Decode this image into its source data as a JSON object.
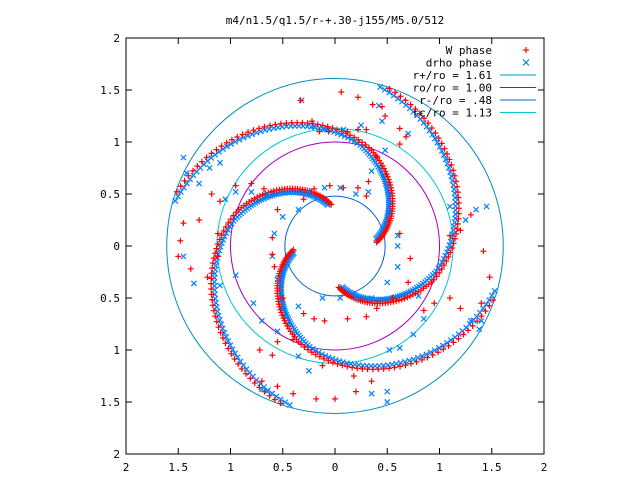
{
  "chart_data": {
    "type": "scatter",
    "title": "m4/n1.5/q1.5/r-+.30-j155/M5.0/512",
    "xlabel": "",
    "ylabel": "",
    "xlim": [
      -2,
      2
    ],
    "ylim": [
      -2,
      2
    ],
    "x_ticks": [
      {
        "value": -2,
        "label": "2"
      },
      {
        "value": -1.5,
        "label": "1.5"
      },
      {
        "value": -1,
        "label": "1"
      },
      {
        "value": -0.5,
        "label": "0.5"
      },
      {
        "value": 0,
        "label": "0"
      },
      {
        "value": 0.5,
        "label": "0.5"
      },
      {
        "value": 1,
        "label": "1"
      },
      {
        "value": 1.5,
        "label": "1.5"
      },
      {
        "value": 2,
        "label": "2"
      }
    ],
    "y_ticks": [
      {
        "value": 2,
        "label": "2"
      },
      {
        "value": 1.5,
        "label": "1.5"
      },
      {
        "value": 1,
        "label": "1"
      },
      {
        "value": 0.5,
        "label": "0.5"
      },
      {
        "value": 0,
        "label": "0"
      },
      {
        "value": -0.5,
        "label": "0.5"
      },
      {
        "value": -1,
        "label": "1"
      },
      {
        "value": -1.5,
        "label": "1.5"
      },
      {
        "value": -2,
        "label": "2"
      }
    ],
    "grid": false,
    "legend_position": "top-right",
    "m": 4,
    "series": [
      {
        "name": "W phase",
        "kind": "points",
        "marker": "plus",
        "color": "#ff0000"
      },
      {
        "name": "drho phase",
        "kind": "points",
        "marker": "cross",
        "color": "#0080ff"
      },
      {
        "name": "r+/ro = 1.61",
        "kind": "circle",
        "radius": 1.61,
        "color": "#0090c0"
      },
      {
        "name": "ro/ro = 1.00",
        "kind": "circle",
        "radius": 1.0,
        "color": "#a000c0"
      },
      {
        "name": "r-/ro = .48",
        "kind": "circle",
        "radius": 0.48,
        "color": "#0060d0"
      },
      {
        "name": "rc/ro = 1.13",
        "kind": "circle",
        "radius": 1.13,
        "color": "#00c8d0"
      }
    ],
    "w_phase_points": [
      [
        0.06,
        1.48
      ],
      [
        0.22,
        1.43
      ],
      [
        0.36,
        1.36
      ],
      [
        0.45,
        1.34
      ],
      [
        0.48,
        1.25
      ],
      [
        0.3,
        1.12
      ],
      [
        0.22,
        1.12
      ],
      [
        0.12,
        1.1
      ],
      [
        -0.06,
        1.1
      ],
      [
        -0.15,
        1.1
      ],
      [
        -0.22,
        1.2
      ],
      [
        -0.33,
        1.4
      ],
      [
        0.62,
        1.13
      ],
      [
        0.68,
        1.05
      ],
      [
        0.62,
        0.98
      ],
      [
        0.4,
        0.86
      ],
      [
        0.32,
        0.62
      ],
      [
        0.3,
        0.48
      ],
      [
        0.22,
        0.56
      ],
      [
        0.08,
        0.56
      ],
      [
        -0.05,
        0.58
      ],
      [
        -0.2,
        0.55
      ],
      [
        -0.3,
        0.45
      ],
      [
        -0.55,
        0.35
      ],
      [
        -0.68,
        0.55
      ],
      [
        -0.8,
        0.6
      ],
      [
        -0.95,
        0.58
      ],
      [
        -1.1,
        0.43
      ],
      [
        -1.18,
        0.5
      ],
      [
        -1.3,
        0.25
      ],
      [
        -1.45,
        0.22
      ],
      [
        -1.48,
        0.05
      ],
      [
        -1.5,
        -0.1
      ],
      [
        -1.38,
        -0.22
      ],
      [
        -1.22,
        -0.3
      ],
      [
        -1.12,
        -0.1
      ],
      [
        -1.12,
        0.12
      ],
      [
        -0.6,
        0.08
      ],
      [
        -0.6,
        -0.08
      ],
      [
        -0.58,
        -0.2
      ],
      [
        -0.5,
        -0.5
      ],
      [
        -0.3,
        -0.65
      ],
      [
        -0.2,
        -0.7
      ],
      [
        -0.1,
        -0.72
      ],
      [
        0.12,
        -0.7
      ],
      [
        0.3,
        -0.68
      ],
      [
        0.4,
        -0.6
      ],
      [
        0.55,
        -0.5
      ],
      [
        0.7,
        -0.35
      ],
      [
        0.72,
        -0.12
      ],
      [
        0.62,
        0.12
      ],
      [
        0.85,
        -0.62
      ],
      [
        0.95,
        -0.55
      ],
      [
        1.1,
        -0.5
      ],
      [
        1.2,
        -0.6
      ],
      [
        1.1,
        0.1
      ],
      [
        1.2,
        0.15
      ],
      [
        1.3,
        0.3
      ],
      [
        1.42,
        -0.05
      ],
      [
        1.48,
        -0.3
      ],
      [
        1.4,
        -0.55
      ],
      [
        -0.6,
        -1.05
      ],
      [
        -0.72,
        -1.0
      ],
      [
        -0.55,
        -0.92
      ],
      [
        -0.4,
        -0.9
      ],
      [
        -0.12,
        -1.15
      ],
      [
        0.18,
        -1.25
      ],
      [
        0.35,
        -1.3
      ],
      [
        0.2,
        -1.4
      ],
      [
        0.0,
        -1.47
      ],
      [
        -0.18,
        -1.47
      ],
      [
        -0.4,
        -1.42
      ],
      [
        -0.55,
        -1.35
      ],
      [
        -0.7,
        -1.3
      ]
    ],
    "drho_phase_points": [
      [
        0.42,
        1.35
      ],
      [
        0.45,
        1.2
      ],
      [
        0.25,
        1.16
      ],
      [
        0.08,
        1.12
      ],
      [
        -0.1,
        1.12
      ],
      [
        -0.2,
        1.15
      ],
      [
        -0.32,
        1.4
      ],
      [
        0.7,
        1.08
      ],
      [
        0.48,
        0.92
      ],
      [
        0.35,
        0.72
      ],
      [
        0.32,
        0.52
      ],
      [
        0.2,
        0.5
      ],
      [
        0.05,
        0.56
      ],
      [
        -0.1,
        0.56
      ],
      [
        -0.25,
        0.52
      ],
      [
        -0.35,
        0.35
      ],
      [
        -0.5,
        0.28
      ],
      [
        -0.65,
        0.5
      ],
      [
        -0.8,
        0.52
      ],
      [
        -0.95,
        0.52
      ],
      [
        -1.05,
        0.45
      ],
      [
        -1.1,
        0.8
      ],
      [
        -1.2,
        0.75
      ],
      [
        -1.3,
        0.6
      ],
      [
        -1.42,
        0.7
      ],
      [
        -1.45,
        0.85
      ],
      [
        -0.95,
        -0.28
      ],
      [
        -1.1,
        -0.38
      ],
      [
        -1.35,
        -0.36
      ],
      [
        -1.45,
        -0.1
      ],
      [
        -0.58,
        0.12
      ],
      [
        -0.6,
        -0.1
      ],
      [
        -0.55,
        -0.32
      ],
      [
        -0.35,
        -0.58
      ],
      [
        -0.12,
        -0.5
      ],
      [
        0.05,
        -0.5
      ],
      [
        0.2,
        -0.5
      ],
      [
        0.35,
        -0.5
      ],
      [
        0.5,
        -0.35
      ],
      [
        0.6,
        -0.2
      ],
      [
        0.6,
        0.0
      ],
      [
        0.6,
        0.1
      ],
      [
        0.8,
        -0.48
      ],
      [
        0.85,
        -0.7
      ],
      [
        0.75,
        -0.85
      ],
      [
        0.62,
        -0.98
      ],
      [
        0.52,
        -1.0
      ],
      [
        1.1,
        0.38
      ],
      [
        1.25,
        0.25
      ],
      [
        1.35,
        0.35
      ],
      [
        1.45,
        0.38
      ],
      [
        1.3,
        -0.72
      ],
      [
        1.38,
        -0.8
      ],
      [
        1.4,
        -0.72
      ],
      [
        -0.25,
        -1.2
      ],
      [
        -0.35,
        -1.06
      ],
      [
        -0.55,
        -0.82
      ],
      [
        -0.7,
        -0.72
      ],
      [
        -0.78,
        -0.55
      ],
      [
        0.35,
        -1.42
      ],
      [
        0.5,
        -1.5
      ],
      [
        0.5,
        -1.4
      ],
      [
        -0.65,
        -1.4
      ],
      [
        -0.7,
        -1.38
      ]
    ],
    "polar_model": {
      "w_center_angles_deg": [
        73,
        163,
        253,
        343
      ],
      "drho_center_angles_deg": [
        76,
        166,
        256,
        346
      ]
    }
  }
}
